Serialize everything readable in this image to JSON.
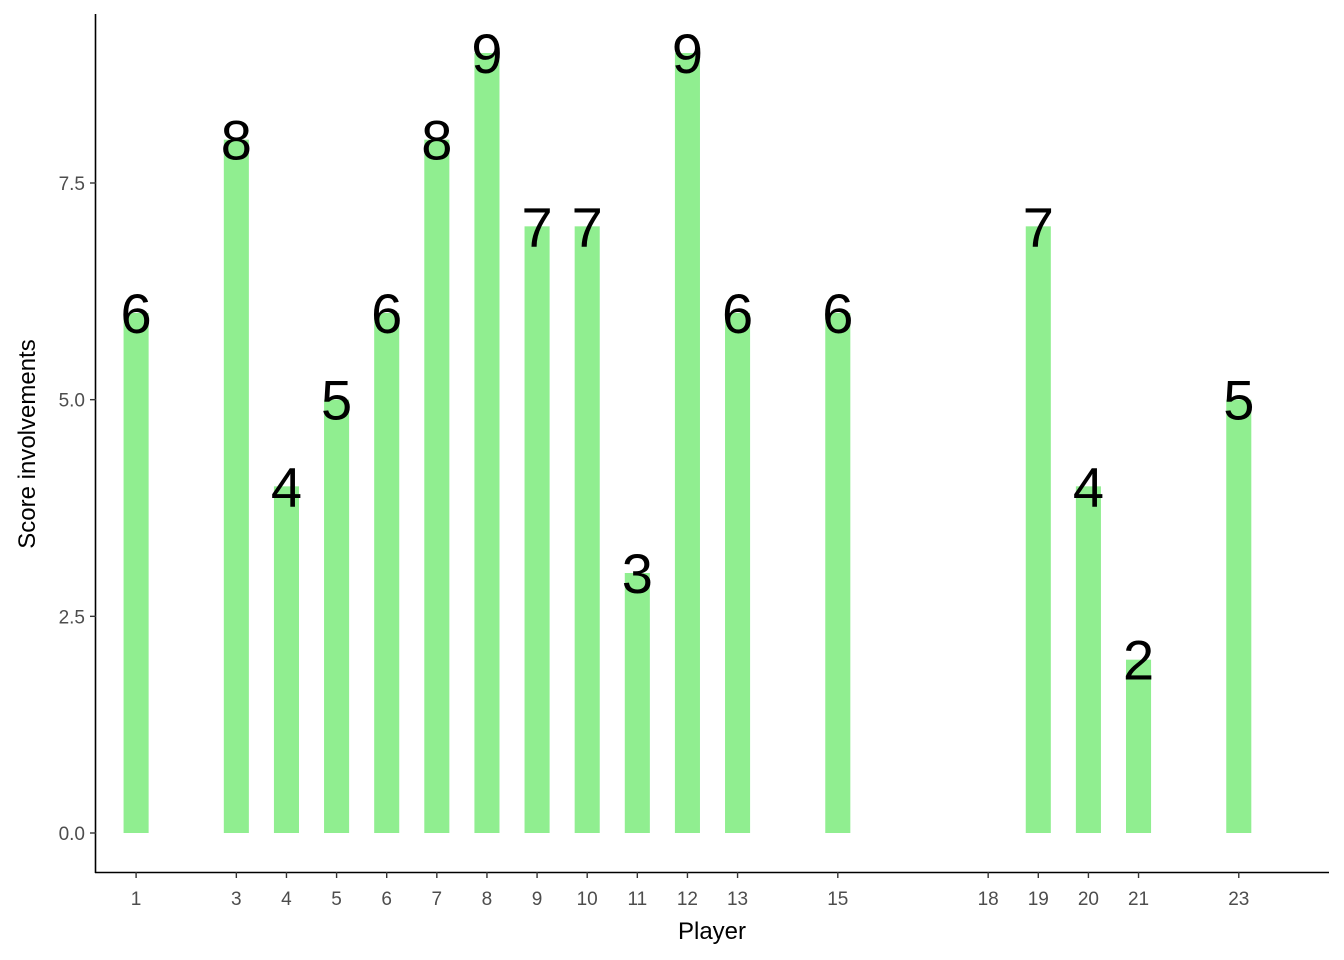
{
  "chart_data": {
    "type": "bar",
    "xlabel": "Player",
    "ylabel": "Score involvements",
    "x": [
      1,
      3,
      4,
      5,
      6,
      7,
      8,
      9,
      10,
      11,
      12,
      13,
      15,
      19,
      20,
      21,
      23
    ],
    "values": [
      6,
      8,
      4,
      5,
      6,
      8,
      9,
      7,
      7,
      3,
      9,
      6,
      6,
      7,
      4,
      2,
      5
    ],
    "data_labels": [
      "6",
      "8",
      "4",
      "5",
      "6",
      "8",
      "9",
      "7",
      "7",
      "3",
      "9",
      "6",
      "6",
      "7",
      "4",
      "2",
      "5"
    ],
    "x_ticks": [
      1,
      3,
      4,
      5,
      6,
      7,
      8,
      9,
      10,
      11,
      12,
      13,
      15,
      18,
      19,
      20,
      21,
      23
    ],
    "x_tick_labels": [
      "1",
      "3",
      "4",
      "5",
      "6",
      "7",
      "8",
      "9",
      "10",
      "11",
      "12",
      "13",
      "15",
      "18",
      "19",
      "20",
      "21",
      "23"
    ],
    "y_ticks": [
      0,
      2.5,
      5,
      7.5
    ],
    "y_tick_labels": [
      "0.0",
      "2.5",
      "5.0",
      "7.5"
    ],
    "xlim": [
      0.2,
      24.8
    ],
    "ylim": [
      -0.45,
      9.45
    ],
    "grid": false,
    "legend": "none",
    "colors": {
      "bar": "#90ee90",
      "axis": "#000000",
      "tick_label": "#4d4d4d",
      "data_label": "#000000"
    }
  }
}
